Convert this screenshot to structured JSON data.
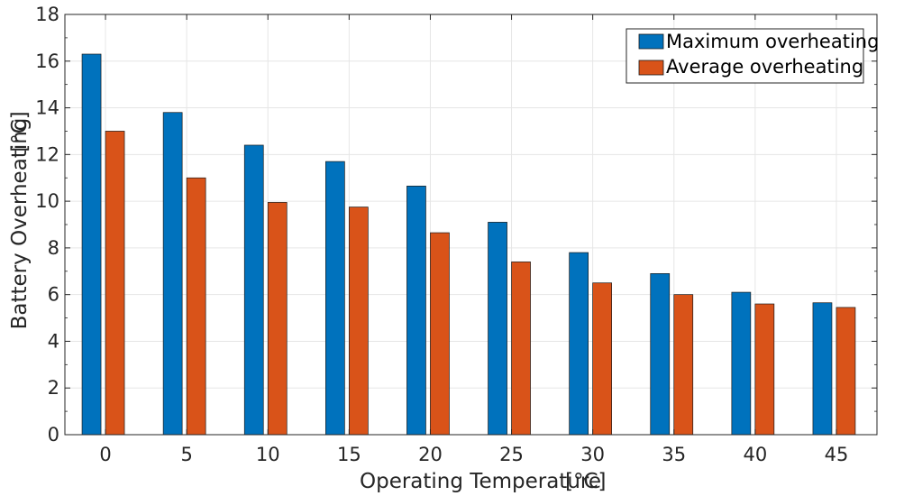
{
  "chart_data": {
    "type": "bar",
    "categories": [
      "0",
      "5",
      "10",
      "15",
      "20",
      "25",
      "30",
      "35",
      "40",
      "45"
    ],
    "series": [
      {
        "name": "Maximum overheating",
        "color": "#0072BD",
        "values": [
          16.3,
          13.8,
          12.4,
          11.7,
          10.65,
          9.1,
          7.8,
          6.9,
          6.1,
          5.65
        ]
      },
      {
        "name": "Average overheating",
        "color": "#D95319",
        "values": [
          13.0,
          11.0,
          9.95,
          9.75,
          8.65,
          7.4,
          6.5,
          6.0,
          5.6,
          5.45
        ]
      }
    ],
    "xlabel": "Operating Temperature",
    "xlabel_unit": "[°C]",
    "ylabel": "Battery Overheating",
    "ylabel_unit": "[°C]",
    "ylim": [
      0,
      18
    ],
    "yticks": [
      "0",
      "2",
      "4",
      "6",
      "8",
      "10",
      "12",
      "14",
      "16",
      "18"
    ],
    "grid": true,
    "legend_position": "top-right"
  }
}
